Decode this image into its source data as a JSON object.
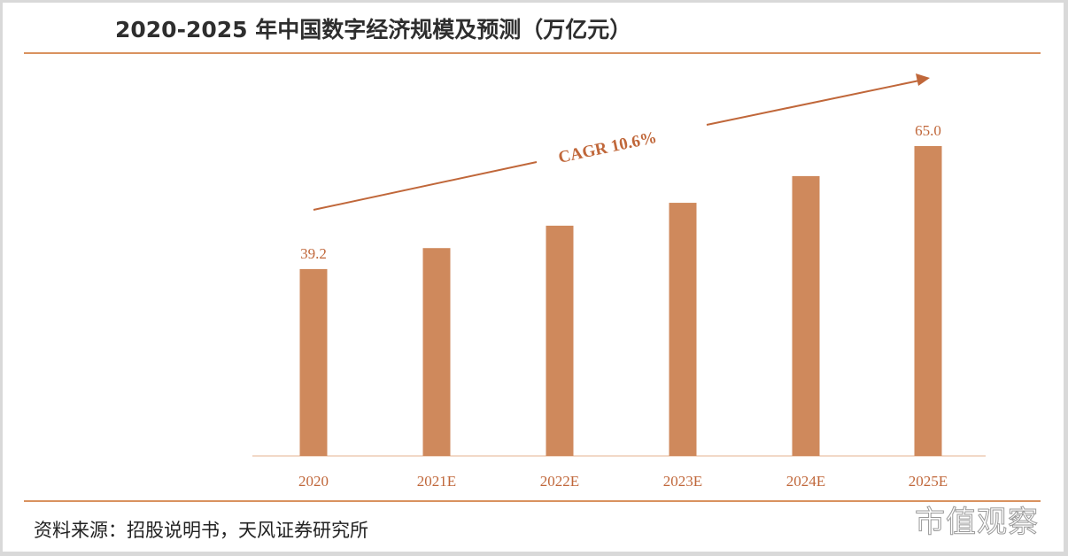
{
  "title": "2020-2025 年中国数字经济规模及预测（万亿元）",
  "source": "资料来源：招股说明书，天风证券研究所",
  "watermark": "市值观察",
  "colors": {
    "bar": "#cf895c",
    "label": "#c0673a",
    "rule": "#d9925f",
    "axis": "#f2d9c8"
  },
  "annotation": {
    "text": "CAGR 10.6%",
    "arrow": "trend-arrow"
  },
  "chart_data": {
    "type": "bar",
    "title": "2020-2025 年中国数字经济规模及预测（万亿元）",
    "xlabel": "",
    "ylabel": "万亿元",
    "categories": [
      "2020",
      "2021E",
      "2022E",
      "2023E",
      "2024E",
      "2025E"
    ],
    "values": [
      39.2,
      43.6,
      48.3,
      53.1,
      58.7,
      65.0
    ],
    "data_labels": [
      "39.2",
      "",
      "",
      "",
      "",
      "65.0"
    ],
    "ylim": [
      0,
      70
    ],
    "grid": false,
    "legend": "none",
    "annotations": [
      "CAGR 10.6%"
    ]
  }
}
